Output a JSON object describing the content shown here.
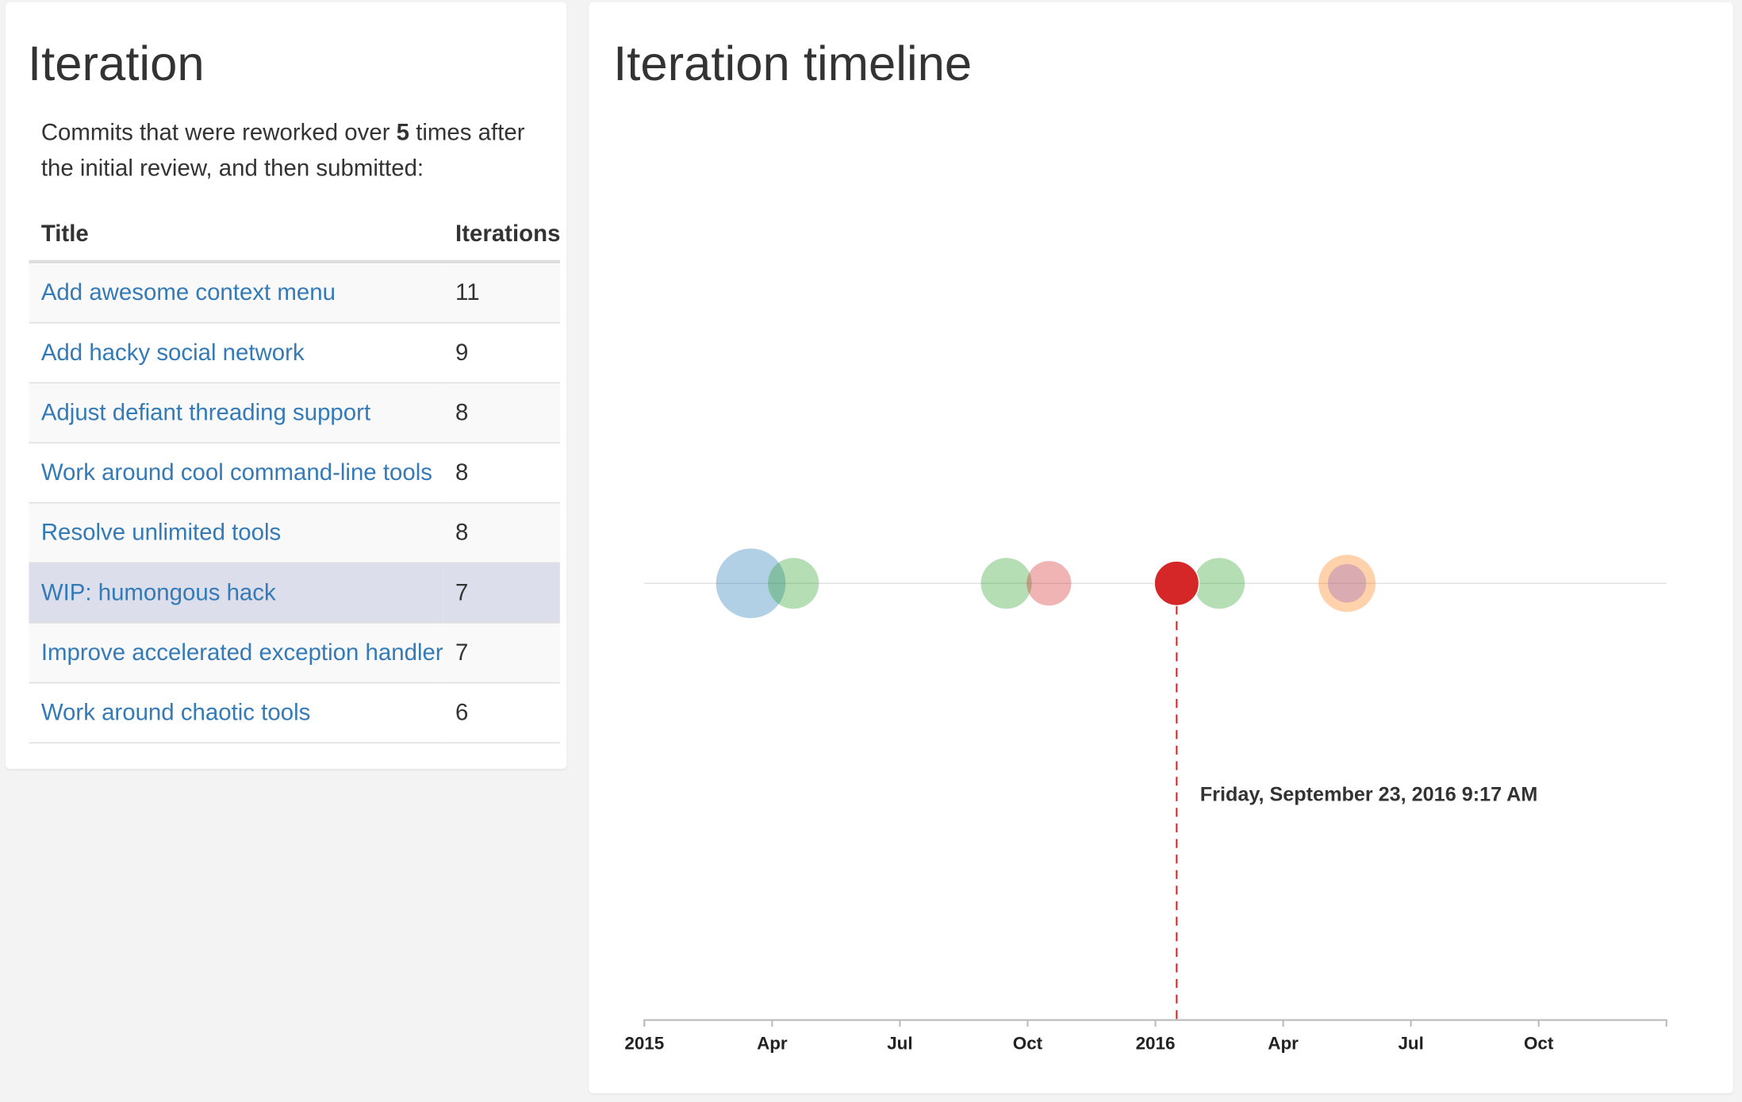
{
  "left_panel": {
    "title": "Iteration",
    "description_before": "Commits that were reworked over",
    "threshold": 5,
    "description_after": "times after the initial review, and then submitted:"
  },
  "table": {
    "columns": [
      "Title",
      "Iterations"
    ],
    "rows": [
      [
        "Add awesome context menu",
        11
      ],
      [
        "Add hacky social network",
        9
      ],
      [
        "Adjust defiant threading support",
        8
      ],
      [
        "Work around cool command-line tools",
        8
      ],
      [
        "Resolve unlimited tools",
        8
      ],
      [
        "WIP: humongous hack",
        7
      ],
      [
        "Improve accelerated exception handler",
        7
      ],
      [
        "Work around chaotic tools",
        6
      ]
    ],
    "highlighted_row": 5
  },
  "chart_data": {
    "type": "bubble",
    "title": "Iteration timeline",
    "x": [
      "2015-03",
      "2016-05",
      "2015-04",
      "2015-09",
      "2016-02",
      "2016-01",
      "2015-10",
      "2016-05"
    ],
    "colors": [
      "#1f77b4",
      "#ff7f0e",
      "#2ca02c",
      "#2ca02c",
      "#2ca02c",
      "#d62728",
      "#d62728",
      "#9467bd"
    ],
    "annotation": "Friday, September 23, 2016 9:17 AM",
    "xlim": [
      "2015-01",
      "2017-01"
    ],
    "xticks": [
      {
        "value": "2015-01",
        "label": "2015"
      },
      {
        "value": "2015-04",
        "label": "Apr"
      },
      {
        "value": "2015-07",
        "label": "Jul"
      },
      {
        "value": "2015-10",
        "label": "Oct"
      },
      {
        "value": "2016-01",
        "label": "2016"
      },
      {
        "value": "2016-04",
        "label": "Apr"
      },
      {
        "value": "2016-07",
        "label": "Jul"
      },
      {
        "value": "2016-10",
        "label": "Oct"
      }
    ]
  }
}
